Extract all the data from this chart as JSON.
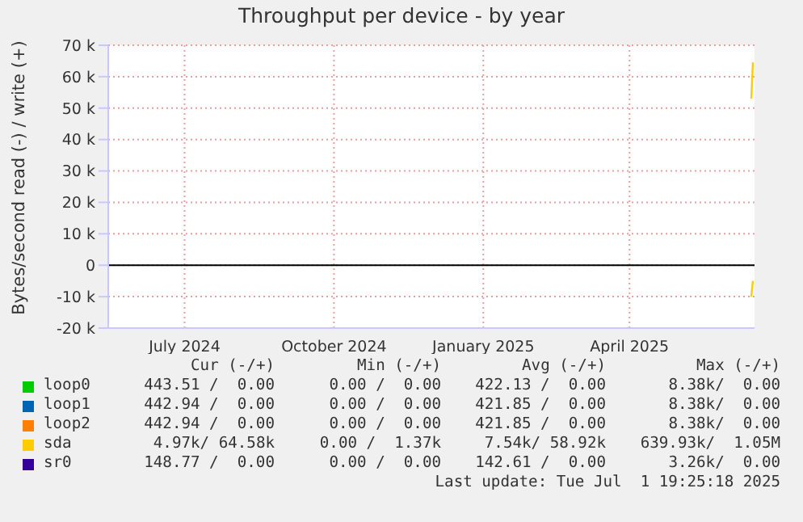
{
  "chart_data": {
    "type": "line",
    "title": "Throughput per device - by year",
    "ylabel": "Bytes/second read (-) / write (+)",
    "x": [
      "2025-06-30",
      "2025-07-01"
    ],
    "series": [
      {
        "name": "loop0",
        "color": "#00cc00",
        "values": [
          null,
          null
        ]
      },
      {
        "name": "loop1",
        "color": "#0066b3",
        "values": [
          null,
          null
        ]
      },
      {
        "name": "loop2",
        "color": "#ff8000",
        "values": [
          null,
          null
        ]
      },
      {
        "name": "sda",
        "color": "#ffcc00",
        "values": [
          53000,
          64580
        ]
      },
      {
        "name": "sr0",
        "color": "#330099",
        "values": [
          null,
          null
        ]
      },
      {
        "color": "#ffcc00",
        "values": [
          -10000,
          -5000
        ]
      }
    ],
    "xlim": [
      "2024-05-30",
      "2025-07-02"
    ],
    "xticks": [
      {
        "value": "2024-07-16",
        "label": "July 2024"
      },
      {
        "value": "2024-10-16",
        "label": "October 2024"
      },
      {
        "value": "2025-01-16",
        "label": "January 2025"
      },
      {
        "value": "2025-04-16",
        "label": "April 2025"
      }
    ],
    "ylim": [
      -20000,
      70000
    ],
    "yticks": [
      {
        "value": -20000,
        "label": "-20 k"
      },
      {
        "value": -10000,
        "label": "-10 k"
      },
      0,
      {
        "value": 10000,
        "label": "10 k"
      },
      {
        "value": 20000,
        "label": "20 k"
      },
      {
        "value": 30000,
        "label": "30 k"
      },
      {
        "value": 40000,
        "label": "40 k"
      },
      {
        "value": 50000,
        "label": "50 k"
      },
      {
        "value": 60000,
        "label": "60 k"
      },
      {
        "value": 70000,
        "label": "70 k"
      }
    ],
    "ref_lines": [
      {
        "axis": "y",
        "value": 0,
        "color": "#000000"
      }
    ],
    "grid": true,
    "legend": "bottom",
    "marker": "none",
    "line_style": "solid",
    "annotations": [
      "Cur (-/+)",
      "Min (-/+)",
      "Avg (-/+)",
      "Max (-/+)",
      "443.51 /  0.00",
      "0.00 /  0.00",
      "422.13 /  0.00",
      "8.38k/  0.00",
      "442.94 /  0.00",
      "0.00 /  0.00",
      "421.85 /  0.00",
      "8.38k/  0.00",
      "442.94 /  0.00",
      "0.00 /  0.00",
      "421.85 /  0.00",
      "8.38k/  0.00",
      "4.97k/ 64.58k",
      "0.00 /  1.37k",
      "7.54k/ 58.92k",
      "639.93k/  1.05M",
      "148.77 /  0.00",
      "0.00 /  0.00",
      "142.61 /  0.00",
      "3.26k/  0.00",
      "Last update: Tue Jul  1 19:25:18 2025"
    ]
  }
}
